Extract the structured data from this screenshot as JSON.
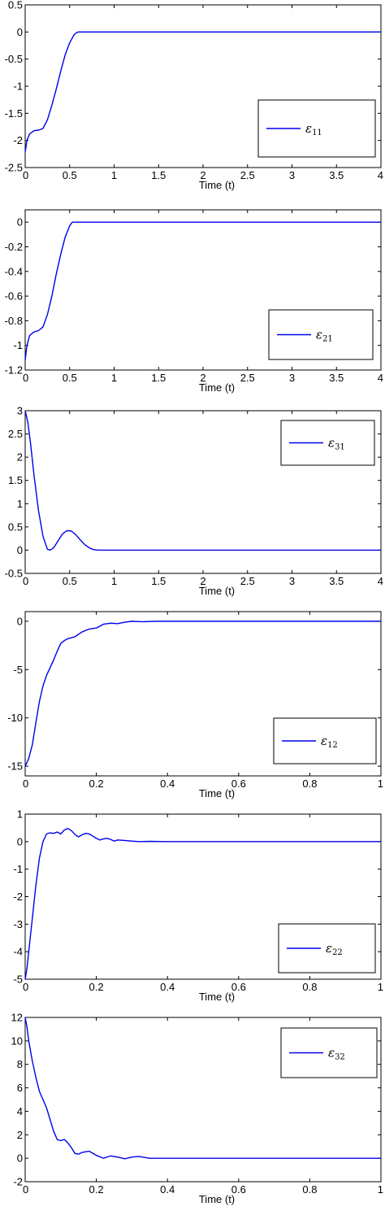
{
  "colors": {
    "line": "#0000ee",
    "axis": "#000000",
    "background": "#ffffff"
  },
  "chart_data": [
    {
      "type": "line",
      "xlabel": "Time (t)",
      "xlim": [
        0,
        4
      ],
      "ylim": [
        -2.5,
        0.5
      ],
      "xticks": [
        0,
        0.5,
        1,
        1.5,
        2,
        2.5,
        3,
        3.5,
        4
      ],
      "xtick_labels": [
        "0",
        "0.5",
        "1",
        "1.5",
        "2",
        "2.5",
        "3",
        "3.5",
        "4"
      ],
      "yticks": [
        -2.5,
        -2,
        -1.5,
        -1,
        -0.5,
        0,
        0.5
      ],
      "ytick_labels": [
        "-2.5",
        "-2",
        "-1.5",
        "-1",
        "-0.5",
        "0",
        "0.5"
      ],
      "legend": {
        "symbol": "ε",
        "subscript": "11",
        "placement": "right-middle"
      },
      "series": [
        {
          "x": [
            0,
            0.02,
            0.05,
            0.1,
            0.15,
            0.2,
            0.25,
            0.3,
            0.35,
            0.4,
            0.45,
            0.5,
            0.55,
            0.58,
            0.6,
            1,
            2,
            3,
            4
          ],
          "y": [
            -2.22,
            -2.0,
            -1.88,
            -1.82,
            -1.81,
            -1.78,
            -1.62,
            -1.35,
            -1.05,
            -0.72,
            -0.42,
            -0.2,
            -0.05,
            -0.01,
            0,
            0,
            0,
            0,
            0
          ]
        }
      ]
    },
    {
      "type": "line",
      "xlabel": "Time (t)",
      "xlim": [
        0,
        4
      ],
      "ylim": [
        -1.2,
        0.1
      ],
      "xticks": [
        0,
        0.5,
        1,
        1.5,
        2,
        2.5,
        3,
        3.5,
        4
      ],
      "xtick_labels": [
        "0",
        "0.5",
        "1",
        "1.5",
        "2",
        "2.5",
        "3",
        "3.5",
        "4"
      ],
      "yticks": [
        -1.2,
        -1,
        -0.8,
        -0.6,
        -0.4,
        -0.2,
        0
      ],
      "ytick_labels": [
        "-1.2",
        "-1",
        "-0.8",
        "-0.6",
        "-0.4",
        "-0.2",
        "0"
      ],
      "legend": {
        "symbol": "ε",
        "subscript": "21",
        "placement": "right-middle"
      },
      "series": [
        {
          "x": [
            0,
            0.02,
            0.05,
            0.1,
            0.15,
            0.2,
            0.25,
            0.3,
            0.35,
            0.4,
            0.45,
            0.5,
            0.53,
            0.55,
            1,
            2,
            3,
            4
          ],
          "y": [
            -1.12,
            -1.0,
            -0.92,
            -0.89,
            -0.88,
            -0.85,
            -0.75,
            -0.6,
            -0.42,
            -0.26,
            -0.12,
            -0.03,
            0,
            0,
            0,
            0,
            0,
            0
          ]
        }
      ]
    },
    {
      "type": "line",
      "xlabel": "Time (t)",
      "xlim": [
        0,
        4
      ],
      "ylim": [
        -0.5,
        3
      ],
      "xticks": [
        0,
        0.5,
        1,
        1.5,
        2,
        2.5,
        3,
        3.5,
        4
      ],
      "xtick_labels": [
        "0",
        "0.5",
        "1",
        "1.5",
        "2",
        "2.5",
        "3",
        "3.5",
        "4"
      ],
      "yticks": [
        -0.5,
        0,
        0.5,
        1,
        1.5,
        2,
        2.5,
        3
      ],
      "ytick_labels": [
        "-0.5",
        "0",
        "0.5",
        "1",
        "1.5",
        "2",
        "2.5",
        "3"
      ],
      "legend": {
        "symbol": "ε",
        "subscript": "31",
        "placement": "top-right"
      },
      "series": [
        {
          "x": [
            0,
            0.03,
            0.06,
            0.1,
            0.15,
            0.2,
            0.25,
            0.28,
            0.32,
            0.37,
            0.42,
            0.47,
            0.52,
            0.57,
            0.62,
            0.67,
            0.72,
            0.77,
            0.82,
            1,
            2,
            3,
            4
          ],
          "y": [
            3.0,
            2.75,
            2.3,
            1.6,
            0.85,
            0.3,
            0.02,
            0.0,
            0.05,
            0.2,
            0.35,
            0.42,
            0.41,
            0.33,
            0.22,
            0.12,
            0.05,
            0.01,
            0,
            0,
            0,
            0,
            0
          ]
        }
      ]
    },
    {
      "type": "line",
      "xlabel": "Time (t)",
      "xlim": [
        0,
        1
      ],
      "ylim": [
        -16,
        1
      ],
      "xticks": [
        0,
        0.2,
        0.4,
        0.6,
        0.8,
        1
      ],
      "xtick_labels": [
        "0",
        "0.2",
        "0.4",
        "0.6",
        "0.8",
        "1"
      ],
      "yticks": [
        -15,
        -10,
        -5,
        0
      ],
      "ytick_labels": [
        "-15",
        "-10",
        "-5",
        "0"
      ],
      "legend": {
        "symbol": "ε",
        "subscript": "12",
        "placement": "bottom-right"
      },
      "series": [
        {
          "x": [
            0,
            0.01,
            0.02,
            0.03,
            0.04,
            0.05,
            0.06,
            0.07,
            0.08,
            0.09,
            0.1,
            0.11,
            0.12,
            0.14,
            0.16,
            0.18,
            0.2,
            0.22,
            0.24,
            0.26,
            0.28,
            0.3,
            0.33,
            0.37,
            0.4,
            1
          ],
          "y": [
            -15,
            -14.2,
            -12.8,
            -10.5,
            -8.3,
            -6.7,
            -5.6,
            -4.8,
            -4.0,
            -3.1,
            -2.3,
            -2.0,
            -1.8,
            -1.6,
            -1.1,
            -0.8,
            -0.7,
            -0.3,
            -0.2,
            -0.25,
            -0.1,
            0.0,
            -0.05,
            0,
            0,
            0
          ]
        }
      ]
    },
    {
      "type": "line",
      "xlabel": "Time (t)",
      "xlim": [
        0,
        1
      ],
      "ylim": [
        -5,
        1
      ],
      "xticks": [
        0,
        0.2,
        0.4,
        0.6,
        0.8,
        1
      ],
      "xtick_labels": [
        "0",
        "0.2",
        "0.4",
        "0.6",
        "0.8",
        "1"
      ],
      "yticks": [
        -5,
        -4,
        -3,
        -2,
        -1,
        0,
        1
      ],
      "ytick_labels": [
        "-5",
        "-4",
        "-3",
        "-2",
        "-1",
        "0",
        "1"
      ],
      "legend": {
        "symbol": "ε",
        "subscript": "22",
        "placement": "bottom-right"
      },
      "series": [
        {
          "x": [
            0,
            0.005,
            0.01,
            0.02,
            0.03,
            0.04,
            0.05,
            0.06,
            0.07,
            0.08,
            0.09,
            0.1,
            0.11,
            0.12,
            0.13,
            0.14,
            0.15,
            0.16,
            0.17,
            0.18,
            0.19,
            0.2,
            0.21,
            0.22,
            0.23,
            0.24,
            0.25,
            0.26,
            0.28,
            0.3,
            0.32,
            0.35,
            0.4,
            1
          ],
          "y": [
            -5,
            -4.6,
            -4.0,
            -2.8,
            -1.6,
            -0.6,
            0.0,
            0.28,
            0.32,
            0.3,
            0.35,
            0.28,
            0.42,
            0.48,
            0.4,
            0.26,
            0.17,
            0.25,
            0.3,
            0.28,
            0.2,
            0.12,
            0.06,
            0.1,
            0.12,
            0.08,
            0.02,
            0.06,
            0.04,
            0.02,
            0.0,
            0.01,
            0,
            0
          ]
        }
      ]
    },
    {
      "type": "line",
      "xlabel": "Time (t)",
      "xlim": [
        0,
        1
      ],
      "ylim": [
        -2,
        12
      ],
      "xticks": [
        0,
        0.2,
        0.4,
        0.6,
        0.8,
        1
      ],
      "xtick_labels": [
        "0",
        "0.2",
        "0.4",
        "0.6",
        "0.8",
        "1"
      ],
      "yticks": [
        -2,
        0,
        2,
        4,
        6,
        8,
        10,
        12
      ],
      "ytick_labels": [
        "-2",
        "0",
        "2",
        "4",
        "6",
        "8",
        "10",
        "12"
      ],
      "legend": {
        "symbol": "ε",
        "subscript": "32",
        "placement": "top-right"
      },
      "series": [
        {
          "x": [
            0,
            0.005,
            0.01,
            0.02,
            0.03,
            0.04,
            0.05,
            0.06,
            0.07,
            0.08,
            0.09,
            0.1,
            0.11,
            0.12,
            0.13,
            0.14,
            0.15,
            0.16,
            0.18,
            0.2,
            0.22,
            0.24,
            0.26,
            0.28,
            0.3,
            0.32,
            0.35,
            0.4,
            1
          ],
          "y": [
            12,
            11.2,
            10,
            8.3,
            6.9,
            5.7,
            5.0,
            4.3,
            3.3,
            2.3,
            1.6,
            1.5,
            1.6,
            1.3,
            0.9,
            0.4,
            0.35,
            0.5,
            0.6,
            0.25,
            0.0,
            0.2,
            0.1,
            -0.05,
            0.1,
            0.15,
            0.0,
            0,
            0
          ]
        }
      ]
    }
  ]
}
